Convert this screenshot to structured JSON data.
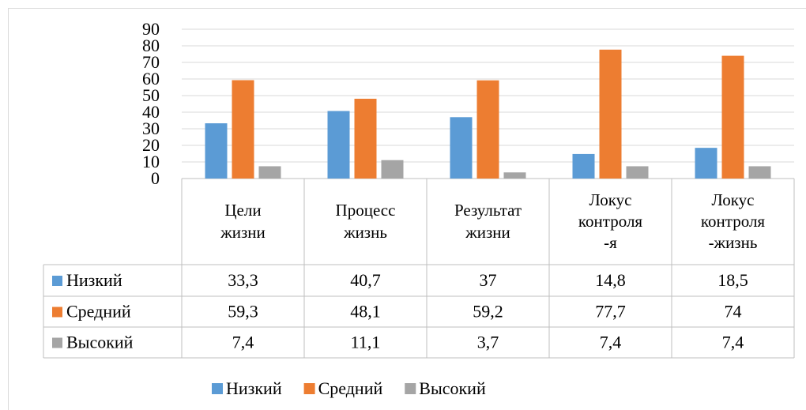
{
  "chart_data": {
    "type": "bar",
    "categories": [
      "Цели жизни",
      "Процесс жизнь",
      "Результат жизни",
      "Локус контроля -я",
      "Локус контроля -жизнь"
    ],
    "series": [
      {
        "name": "Низкий",
        "color": "#5b9bd5",
        "values": [
          33.3,
          40.7,
          37,
          14.8,
          18.5
        ],
        "value_labels": [
          "33,3",
          "40,7",
          "37",
          "14,8",
          "18,5"
        ]
      },
      {
        "name": "Средний",
        "color": "#ed7d31",
        "values": [
          59.3,
          48.1,
          59.2,
          77.7,
          74
        ],
        "value_labels": [
          "59,3",
          "48,1",
          "59,2",
          "77,7",
          "74"
        ]
      },
      {
        "name": "Высокий",
        "color": "#a5a5a5",
        "values": [
          7.4,
          11.1,
          3.7,
          7.4,
          7.4
        ],
        "value_labels": [
          "7,4",
          "11,1",
          "3,7",
          "7,4",
          "7,4"
        ]
      }
    ],
    "ylim": [
      0,
      90
    ],
    "yticks": [
      0,
      10,
      20,
      30,
      40,
      50,
      60,
      70,
      80,
      90
    ],
    "grid": true,
    "legend": "bottom"
  }
}
